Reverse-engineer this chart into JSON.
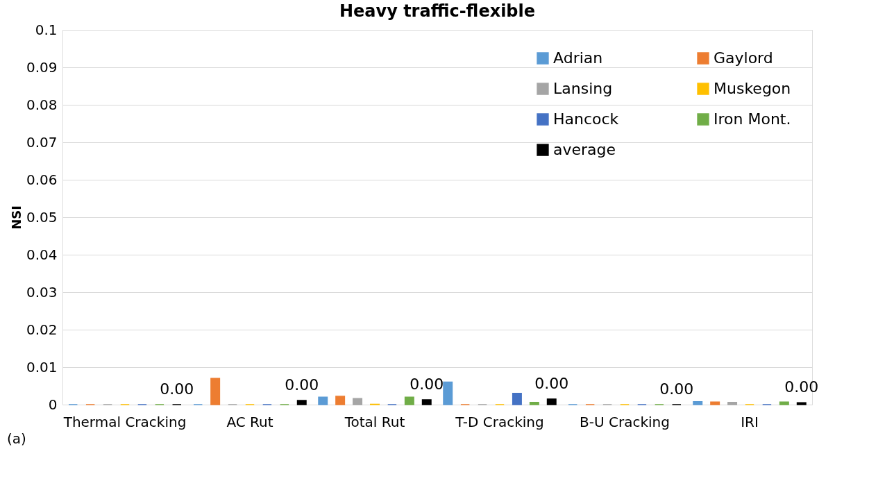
{
  "chart_data": {
    "type": "bar",
    "title": "Heavy traffic-flexible",
    "ylabel": "NSI",
    "categories": [
      "Thermal Cracking",
      "AC Rut",
      "Total Rut",
      "T-D Cracking",
      "B-U Cracking",
      "IRI"
    ],
    "series": [
      {
        "name": "Adrian",
        "color": "#5b9bd5",
        "values": [
          0,
          0,
          0.002,
          0.006,
          0,
          0.0008
        ]
      },
      {
        "name": "Gaylord",
        "color": "#ed7d31",
        "values": [
          0,
          0.007,
          0.0022,
          0,
          0,
          0.0007
        ]
      },
      {
        "name": "Lansing",
        "color": "#a5a5a5",
        "values": [
          0,
          0,
          0.0016,
          0,
          0,
          0.0006
        ]
      },
      {
        "name": "Muskegon",
        "color": "#ffc000",
        "values": [
          0,
          0,
          0.0001,
          0,
          0,
          0
        ]
      },
      {
        "name": "Hancock",
        "color": "#4472c4",
        "values": [
          0,
          0,
          0,
          0.003,
          0,
          0
        ]
      },
      {
        "name": "Iron Mont.",
        "color": "#70ad47",
        "values": [
          0,
          0,
          0.002,
          0.0006,
          0,
          0.0007
        ]
      },
      {
        "name": "average",
        "color": "#000000",
        "values": [
          0,
          0.0011,
          0.0013,
          0.0015,
          0,
          0.0005
        ],
        "value_labels": [
          "0.00",
          "0.00",
          "0.00",
          "0.00",
          "0.00",
          "0.00"
        ]
      }
    ],
    "ylim": [
      0,
      0.1
    ],
    "yticks": [
      0,
      0.01,
      0.02,
      0.03,
      0.04,
      0.05,
      0.06,
      0.07,
      0.08,
      0.09,
      0.1
    ],
    "grid": "y",
    "legend": "top right",
    "annotations": [
      "(a)"
    ]
  }
}
